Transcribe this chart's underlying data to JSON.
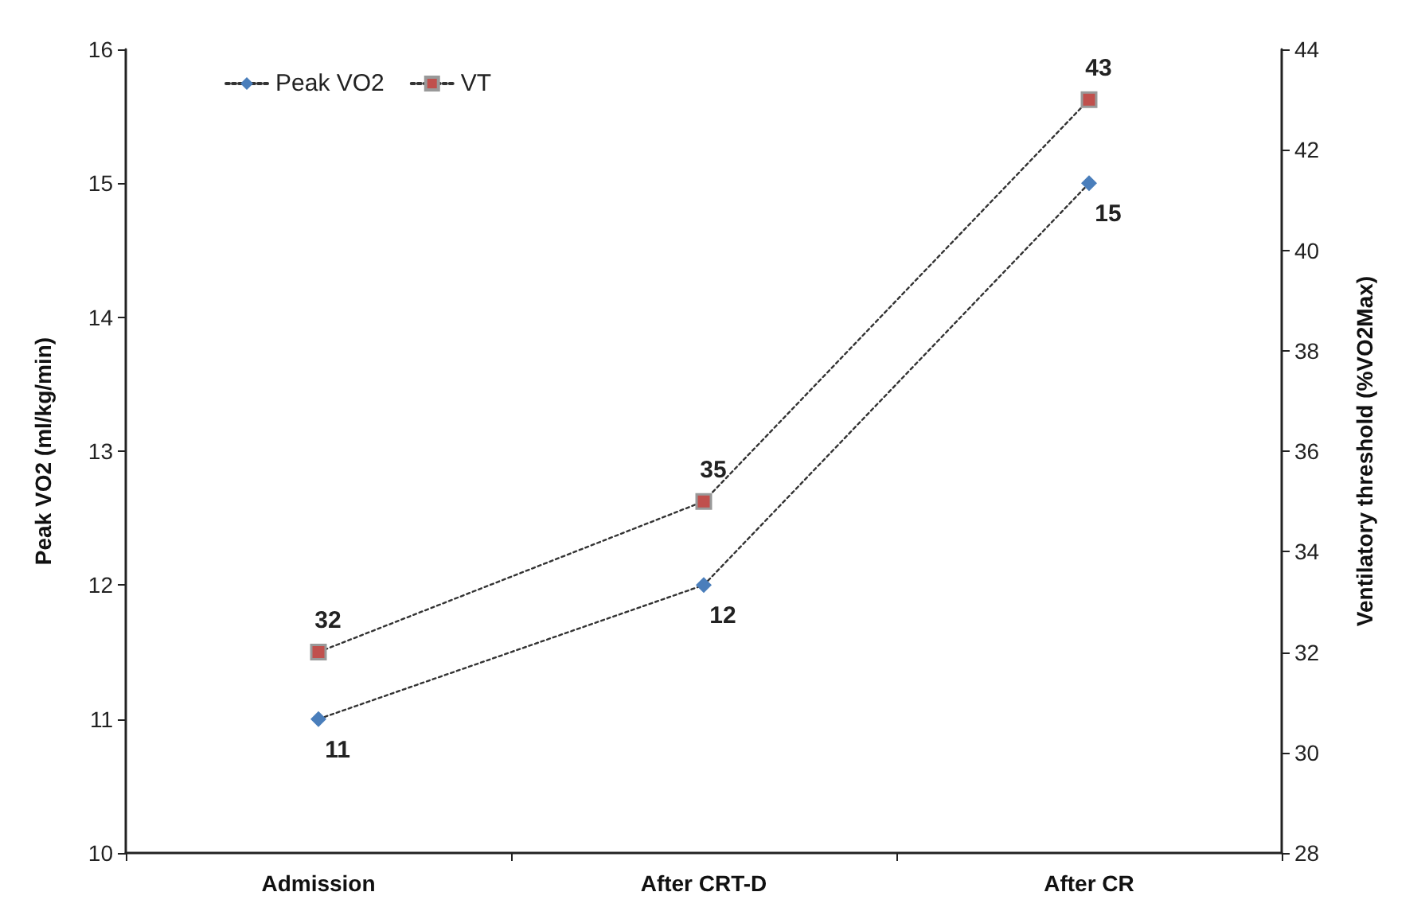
{
  "chart_data": {
    "type": "line",
    "categories": [
      "Admission",
      "After CRT-D",
      "After CR"
    ],
    "ylabel": "Peak VO2 (ml/kg/min)",
    "y2label": "Ventilatory threshold (%VO2Max)",
    "series": [
      {
        "name": "Peak VO2",
        "color": "#4a7ebb",
        "values": [
          11,
          12,
          15
        ],
        "marker": "diamond"
      },
      {
        "name": "VT",
        "color": "#c0504d",
        "values": [
          32,
          35,
          43
        ],
        "axis": "y2",
        "marker": "square"
      }
    ],
    "ylim": [
      10,
      16
    ],
    "yticks": [
      10,
      11,
      12,
      13,
      14,
      15,
      16
    ],
    "y2lim": [
      28,
      44
    ],
    "y2ticks": [
      28,
      30,
      32,
      34,
      36,
      38,
      40,
      42,
      44
    ],
    "data_labels": true,
    "grid": false,
    "legend": "top left",
    "line_style": "dotted"
  }
}
